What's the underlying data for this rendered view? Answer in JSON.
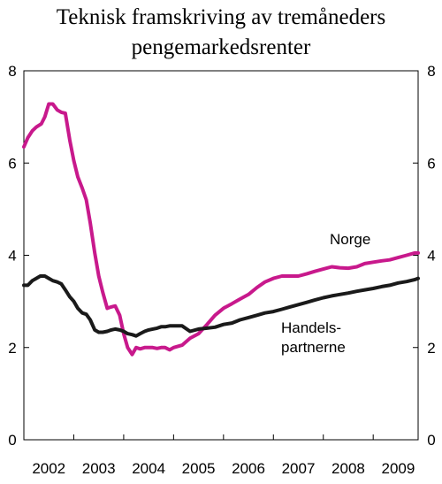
{
  "chart_data": {
    "type": "line",
    "title_lines": [
      "Teknisk framskriving av tremåneders",
      "pengemarkedsrenter"
    ],
    "ylim": [
      0,
      8
    ],
    "yticks": [
      "0",
      "2",
      "4",
      "6",
      "8"
    ],
    "y2ticks": [
      "0",
      "2",
      "4",
      "6",
      "8"
    ],
    "xlim": [
      2002.0,
      2009.9
    ],
    "xticks": [
      "2002",
      "2003",
      "2004",
      "2005",
      "2006",
      "2007",
      "2008",
      "2009"
    ],
    "grid": false,
    "colors": {
      "norge": "#c8198c",
      "handelspartnerne": "#1a1a1a"
    },
    "annotations": [
      {
        "text_lines": [
          "Norge"
        ],
        "series": "Norge"
      },
      {
        "text_lines": [
          "Handels-",
          "partnerne"
        ],
        "series": "Handelspartnerne"
      }
    ],
    "series": [
      {
        "name": "Norge",
        "x": [
          2002.0,
          2002.08,
          2002.17,
          2002.25,
          2002.35,
          2002.42,
          2002.5,
          2002.58,
          2002.67,
          2002.75,
          2002.83,
          2002.92,
          2003.0,
          2003.08,
          2003.17,
          2003.25,
          2003.33,
          2003.42,
          2003.5,
          2003.58,
          2003.67,
          2003.75,
          2003.83,
          2003.92,
          2004.0,
          2004.08,
          2004.17,
          2004.25,
          2004.33,
          2004.42,
          2004.5,
          2004.58,
          2004.67,
          2004.75,
          2004.83,
          2004.92,
          2005.0,
          2005.17,
          2005.33,
          2005.5,
          2005.67,
          2005.83,
          2006.0,
          2006.17,
          2006.33,
          2006.5,
          2006.67,
          2006.83,
          2007.0,
          2007.17,
          2007.33,
          2007.5,
          2007.67,
          2007.83,
          2008.0,
          2008.17,
          2008.33,
          2008.5,
          2008.67,
          2008.83,
          2009.0,
          2009.17,
          2009.33,
          2009.5,
          2009.67,
          2009.83,
          2009.9
        ],
        "y": [
          6.35,
          6.55,
          6.7,
          6.78,
          6.85,
          7.0,
          7.28,
          7.28,
          7.15,
          7.1,
          7.08,
          6.5,
          6.05,
          5.7,
          5.45,
          5.2,
          4.7,
          4.05,
          3.55,
          3.2,
          2.85,
          2.88,
          2.9,
          2.7,
          2.3,
          2.0,
          1.85,
          2.0,
          1.97,
          2.0,
          2.0,
          2.0,
          1.98,
          2.0,
          2.0,
          1.95,
          2.0,
          2.05,
          2.2,
          2.3,
          2.5,
          2.7,
          2.85,
          2.95,
          3.05,
          3.15,
          3.3,
          3.42,
          3.5,
          3.55,
          3.55,
          3.55,
          3.6,
          3.65,
          3.7,
          3.75,
          3.73,
          3.72,
          3.75,
          3.82,
          3.85,
          3.88,
          3.9,
          3.95,
          4.0,
          4.05,
          4.05
        ]
      },
      {
        "name": "Handelspartnerne",
        "x": [
          2002.0,
          2002.08,
          2002.17,
          2002.25,
          2002.33,
          2002.42,
          2002.5,
          2002.58,
          2002.67,
          2002.75,
          2002.83,
          2002.92,
          2003.0,
          2003.08,
          2003.17,
          2003.25,
          2003.33,
          2003.42,
          2003.5,
          2003.58,
          2003.67,
          2003.75,
          2003.83,
          2003.92,
          2004.0,
          2004.08,
          2004.17,
          2004.25,
          2004.33,
          2004.42,
          2004.5,
          2004.58,
          2004.67,
          2004.75,
          2004.83,
          2004.92,
          2005.0,
          2005.17,
          2005.33,
          2005.5,
          2005.67,
          2005.83,
          2006.0,
          2006.17,
          2006.33,
          2006.5,
          2006.67,
          2006.83,
          2007.0,
          2007.17,
          2007.33,
          2007.5,
          2007.67,
          2007.83,
          2008.0,
          2008.17,
          2008.33,
          2008.5,
          2008.67,
          2008.83,
          2009.0,
          2009.17,
          2009.33,
          2009.5,
          2009.67,
          2009.83,
          2009.9
        ],
        "y": [
          3.35,
          3.35,
          3.45,
          3.5,
          3.55,
          3.55,
          3.5,
          3.45,
          3.42,
          3.38,
          3.25,
          3.1,
          3.0,
          2.85,
          2.75,
          2.72,
          2.6,
          2.38,
          2.33,
          2.33,
          2.35,
          2.38,
          2.4,
          2.38,
          2.35,
          2.3,
          2.28,
          2.25,
          2.3,
          2.35,
          2.38,
          2.4,
          2.42,
          2.45,
          2.45,
          2.47,
          2.47,
          2.47,
          2.35,
          2.4,
          2.42,
          2.44,
          2.5,
          2.53,
          2.6,
          2.65,
          2.7,
          2.75,
          2.78,
          2.83,
          2.88,
          2.93,
          2.98,
          3.03,
          3.08,
          3.12,
          3.15,
          3.18,
          3.22,
          3.25,
          3.28,
          3.32,
          3.35,
          3.4,
          3.43,
          3.47,
          3.5
        ]
      }
    ]
  }
}
